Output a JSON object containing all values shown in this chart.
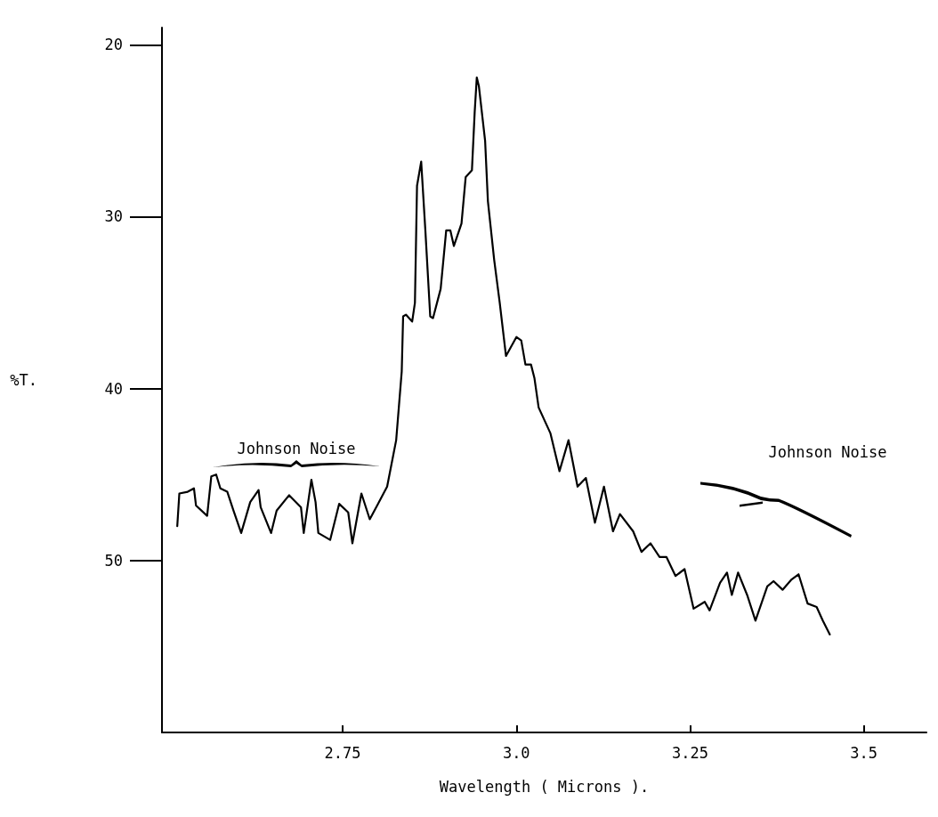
{
  "chart_data": {
    "type": "line",
    "xlabel": "Wavelength ( Microns ).",
    "ylabel": "%T.",
    "xlim": [
      2.49,
      3.59
    ],
    "xticks": [
      2.75,
      {
        "value": 3.0,
        "label": "3.0"
      },
      3.25,
      3.5
    ],
    "ylim": [
      60,
      19
    ],
    "yticks": [
      20,
      30,
      40,
      50
    ],
    "grid": false,
    "marker": "none",
    "line_style": "solid",
    "annotations": [
      "Johnson Noise",
      "Johnson Noise"
    ],
    "series": [
      {
        "color": "#000000",
        "x": [
          2.512,
          2.515,
          2.527,
          2.536,
          2.539,
          2.555,
          2.561,
          2.568,
          2.574,
          2.584,
          2.593,
          2.604,
          2.617,
          2.629,
          2.632,
          2.647,
          2.655,
          2.673,
          2.69,
          2.694,
          2.705,
          2.711,
          2.715,
          2.732,
          2.745,
          2.758,
          2.764,
          2.777,
          2.789,
          2.801,
          2.814,
          2.827,
          2.835,
          2.837,
          2.841,
          2.85,
          2.854,
          2.857,
          2.863,
          2.869,
          2.876,
          2.88,
          2.891,
          2.899,
          2.905,
          2.91,
          2.921,
          2.927,
          2.936,
          2.94,
          2.943,
          2.946,
          2.955,
          2.959,
          2.968,
          2.976,
          2.985,
          3.0,
          3.007,
          3.013,
          3.021,
          3.026,
          3.032,
          3.049,
          3.062,
          3.075,
          3.088,
          3.1,
          3.113,
          3.126,
          3.139,
          3.149,
          3.168,
          3.18,
          3.193,
          3.206,
          3.216,
          3.229,
          3.242,
          3.255,
          3.271,
          3.278,
          3.293,
          3.303,
          3.31,
          3.319,
          3.332,
          3.344,
          3.361,
          3.37,
          3.383,
          3.396,
          3.406,
          3.419,
          3.432,
          3.441,
          3.451
        ],
        "values": [
          48.0,
          46.1,
          46.0,
          45.8,
          46.8,
          47.4,
          45.1,
          45.0,
          45.8,
          46.0,
          47.1,
          48.4,
          46.6,
          45.9,
          46.9,
          48.4,
          47.1,
          46.2,
          46.9,
          48.4,
          45.3,
          46.6,
          48.4,
          48.8,
          46.7,
          47.2,
          49.0,
          46.1,
          47.6,
          46.7,
          45.7,
          43.0,
          39.0,
          35.8,
          35.7,
          36.1,
          35.0,
          28.2,
          26.8,
          30.8,
          35.8,
          35.9,
          34.2,
          30.8,
          30.8,
          31.7,
          30.4,
          27.7,
          27.3,
          23.9,
          21.9,
          22.4,
          25.6,
          29.1,
          32.5,
          35.0,
          38.1,
          37.0,
          37.2,
          38.6,
          38.6,
          39.4,
          41.1,
          42.6,
          44.8,
          43.0,
          45.7,
          45.2,
          47.8,
          45.7,
          48.3,
          47.3,
          48.3,
          49.5,
          49.0,
          49.8,
          49.8,
          50.9,
          50.5,
          52.8,
          52.4,
          52.9,
          51.3,
          50.7,
          52.0,
          50.7,
          52.0,
          53.5,
          51.5,
          51.2,
          51.7,
          51.1,
          50.8,
          52.5,
          52.7,
          53.5,
          54.3
        ]
      }
    ]
  }
}
